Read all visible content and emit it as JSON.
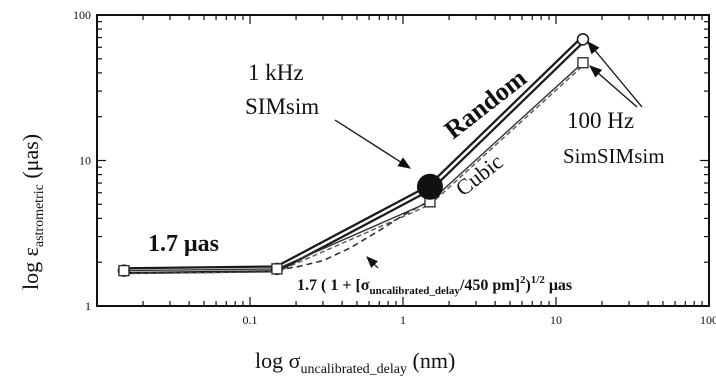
{
  "chart_data": {
    "type": "line",
    "xscale": "log",
    "yscale": "log",
    "xlim": [
      0.01,
      100
    ],
    "ylim": [
      1,
      100
    ],
    "grid": false,
    "x_ticks": [
      "0.1",
      "1",
      "10",
      "100"
    ],
    "y_ticks": [
      "1",
      "10",
      "100"
    ],
    "xlabel": {
      "main": "log σ",
      "sub": "uncalibrated_delay",
      "tail": " (nm)"
    },
    "ylabel": {
      "main": "log ε",
      "sub": "astrometric",
      "tail": " (μas)"
    },
    "series": [
      {
        "key": "random",
        "name": "Random",
        "style": "thick-double-solid",
        "marker": "open-circle",
        "x": [
          0.015,
          0.15,
          1.5,
          15
        ],
        "y": [
          1.75,
          1.8,
          6.5,
          68
        ]
      },
      {
        "key": "cubic",
        "name": "Cubic",
        "style": "double-dashed",
        "marker": "open-square",
        "x": [
          0.015,
          0.15,
          1.5,
          15
        ],
        "y": [
          1.75,
          1.8,
          5.2,
          47
        ]
      },
      {
        "key": "fit",
        "name": "",
        "style": "dashed",
        "marker": "none",
        "x": [
          0.15,
          0.2,
          0.3,
          0.45,
          0.7,
          1.0,
          1.5
        ],
        "y": [
          1.78,
          1.85,
          2.05,
          2.5,
          3.3,
          4.2,
          5.3
        ]
      }
    ],
    "highlight_point": {
      "x": 1.5,
      "y": 6.6
    },
    "annotations": {
      "flat_value": "1.7 μas",
      "khz_line1": "1 kHz",
      "khz_line2": "SIMsim",
      "hz_line1": "100 Hz",
      "hz_line2": "SimSIMsim",
      "random_label": "Random",
      "cubic_label": "Cubic",
      "formula": {
        "lead": "1.7 ( 1 + [σ",
        "sub": "uncalibrated_delay",
        "mid": "/450 pm]",
        "sup1": "2",
        "close": ")",
        "sup2": "1/2",
        "tail": " μas"
      }
    },
    "colors": {
      "ink": "#111111",
      "line": "#1a1a1a",
      "dash": "#555555",
      "background": "#ffffff"
    }
  }
}
